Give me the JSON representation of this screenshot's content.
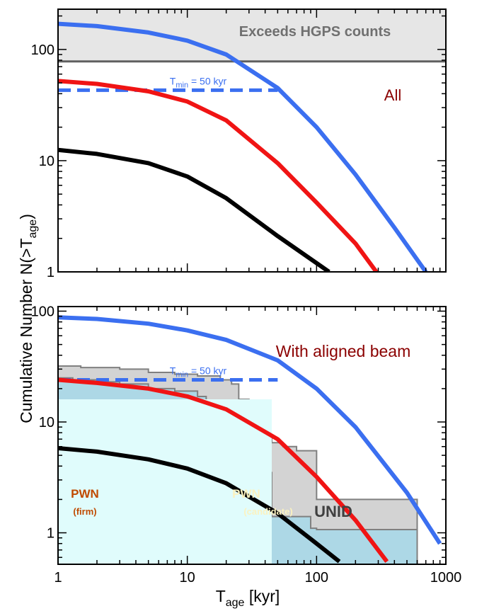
{
  "chart_data": {
    "type": "line",
    "x_scale": "log",
    "y_scale": "log",
    "xlim": [
      1,
      1000
    ],
    "xlabel": "T",
    "xlabel_sub": "age",
    "xlabel_unit": " [kyr]",
    "ylabel": "Cumulative Number N(>T",
    "ylabel_sub": "age",
    "ylabel_end": ")",
    "x_ticks": [
      "1",
      "10",
      "100",
      "1000"
    ],
    "colors": {
      "blue": "#3b6ff0",
      "red": "#f01414",
      "black": "#000000",
      "annotation": "#8b0000",
      "gray": "#606060"
    },
    "panels": [
      {
        "label": "All",
        "ylim": [
          1,
          230
        ],
        "y_ticks": [
          "1",
          "10",
          "100"
        ],
        "threshold": {
          "label": "Exceeds HGPS counts",
          "y": 78
        },
        "tmin": {
          "label_pre": "T",
          "label_sub": "min",
          "label_post": " = 50 kyr",
          "y": 43,
          "x_end": 50
        },
        "series": [
          {
            "color": "blue",
            "x": [
              1,
              2,
              5,
              10,
              20,
              50,
              100,
              200,
              400,
              700
            ],
            "y": [
              170,
              162,
              142,
              120,
              90,
              45,
              20,
              7.5,
              2.5,
              1
            ]
          },
          {
            "color": "red",
            "x": [
              1,
              2,
              5,
              10,
              20,
              50,
              100,
              200,
              290
            ],
            "y": [
              52,
              49,
              42,
              34,
              23,
              9.5,
              4.2,
              1.8,
              1
            ]
          },
          {
            "color": "black",
            "x": [
              1,
              2,
              5,
              10,
              20,
              50,
              100,
              125
            ],
            "y": [
              12.5,
              11.5,
              9.5,
              7.2,
              4.6,
              2.1,
              1.2,
              1
            ]
          }
        ]
      },
      {
        "label": "With aligned beam",
        "ylim": [
          0.52,
          110
        ],
        "y_ticks": [
          "1",
          "10",
          "100"
        ],
        "tmin": {
          "label_pre": "T",
          "label_sub": "min",
          "label_post": " = 50 kyr",
          "y": 24,
          "x_end": 50
        },
        "area_labels": {
          "pwn_firm": "PWN",
          "pwn_firm_sub": "(firm)",
          "pwn_candidate": "PWN",
          "pwn_candidate_sub": "(candidate)",
          "unid": "UNID"
        },
        "series": [
          {
            "color": "blue",
            "x": [
              1,
              2,
              5,
              10,
              20,
              50,
              100,
              200,
              500,
              900
            ],
            "y": [
              88,
              85,
              77,
              67,
              55,
              36,
              20,
              9,
              2.3,
              0.8
            ]
          },
          {
            "color": "red",
            "x": [
              1,
              2,
              5,
              10,
              20,
              50,
              100,
              200,
              350
            ],
            "y": [
              24,
              22.5,
              20,
              17,
              13,
              7,
              3.2,
              1.3,
              0.55
            ]
          },
          {
            "color": "black",
            "x": [
              1,
              2,
              5,
              10,
              20,
              50,
              100,
              150
            ],
            "y": [
              5.8,
              5.4,
              4.6,
              3.8,
              2.8,
              1.5,
              0.8,
              0.55
            ]
          }
        ],
        "histograms": [
          {
            "name": "firm",
            "fill": "#e0fcfc",
            "x": [
              1,
              1.2,
              45,
              45,
              1000
            ],
            "y": [
              16,
              16,
              16,
              0.52,
              0.52
            ]
          },
          {
            "name": "candidate",
            "fill": "#add8e6",
            "x": [
              1,
              1.3,
              2,
              3,
              5,
              8,
              12,
              14,
              15,
              17,
              20,
              25,
              30,
              45,
              90,
              100,
              150,
              600,
              600
            ],
            "y": [
              25,
              24,
              23,
              22,
              20,
              19,
              17,
              11,
              9,
              8,
              6,
              5,
              3.5,
              1.4,
              1.1,
              1.07,
              1.07,
              1.07,
              0.52
            ]
          },
          {
            "name": "unid",
            "fill": "#d3d3d3",
            "x": [
              1,
              1.5,
              3,
              5,
              8,
              12,
              18,
              22,
              25,
              30,
              35,
              40,
              45,
              55,
              70,
              90,
              100,
              150,
              600,
              600
            ],
            "y": [
              32,
              31,
              30,
              28,
              27,
              26,
              24,
              22,
              16,
              10,
              8,
              7,
              6.5,
              6,
              5.5,
              5.5,
              2,
              2,
              1.07,
              0.52
            ]
          }
        ]
      }
    ]
  }
}
